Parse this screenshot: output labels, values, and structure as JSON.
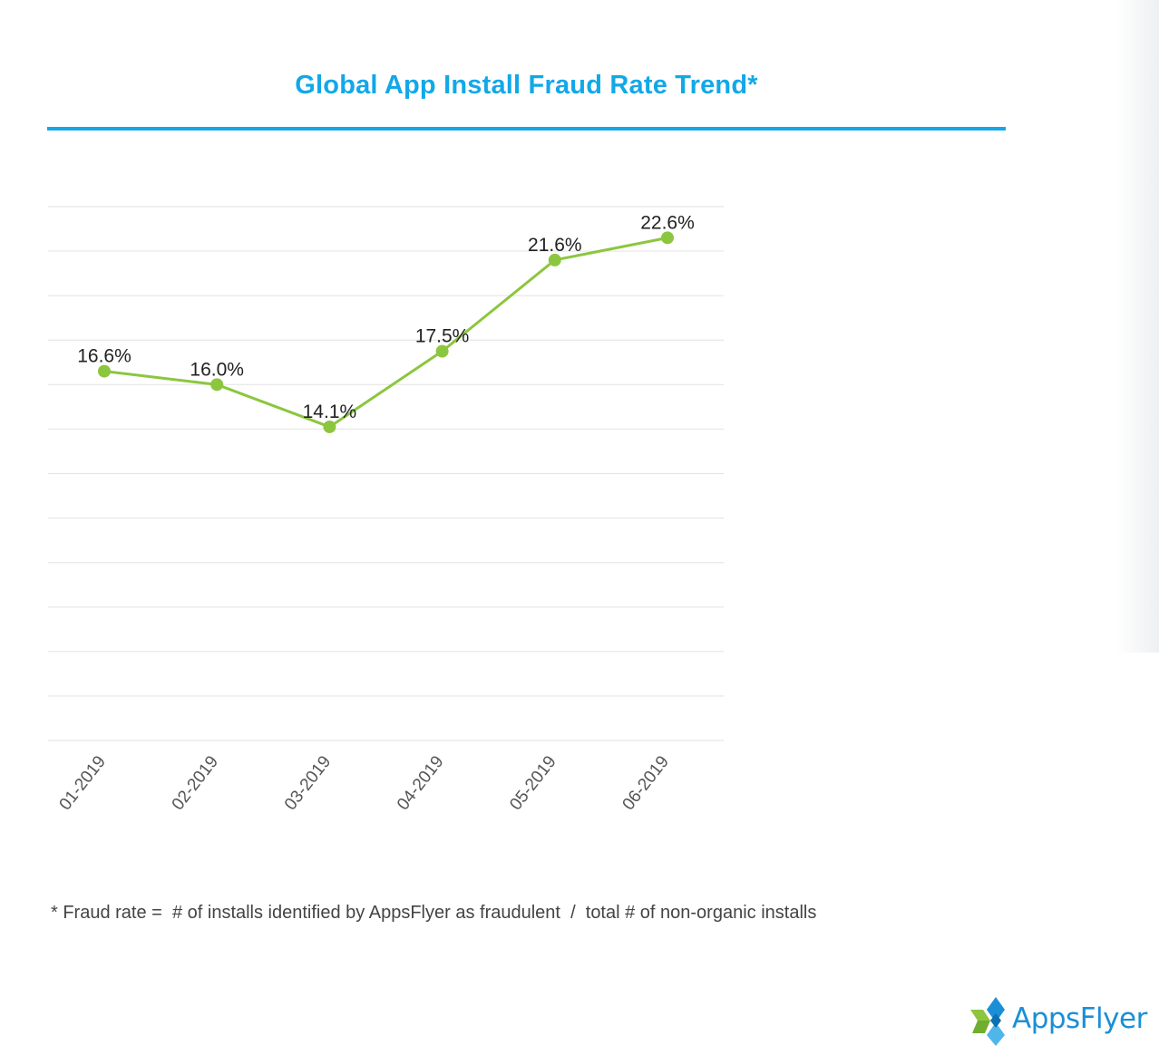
{
  "chart_data": {
    "type": "line",
    "title": "Global App Install Fraud Rate Trend*",
    "categories": [
      "01-2019",
      "02-2019",
      "03-2019",
      "04-2019",
      "05-2019",
      "06-2019"
    ],
    "series": [
      {
        "values": [
          16.6,
          16.0,
          14.1,
          17.5,
          21.6,
          22.6
        ],
        "labels": [
          "16.6%",
          "16.0%",
          "14.1%",
          "17.5%",
          "21.6%",
          "22.6%"
        ],
        "color": "#8cc63f"
      }
    ],
    "ylim": [
      0,
      24
    ],
    "grid": true,
    "xlabel": "",
    "ylabel": ""
  },
  "footnote": "* Fraud rate =  # of installs identified by AppsFlyer as fraudulent  /  total # of non-organic installs",
  "logo": {
    "text": "AppsFlyer",
    "colors": {
      "green": "#8cc63f",
      "blue": "#1a8fd6"
    }
  },
  "colors": {
    "title": "#12a8e8",
    "grid": "#e6e6e6",
    "line": "#8cc63f"
  }
}
